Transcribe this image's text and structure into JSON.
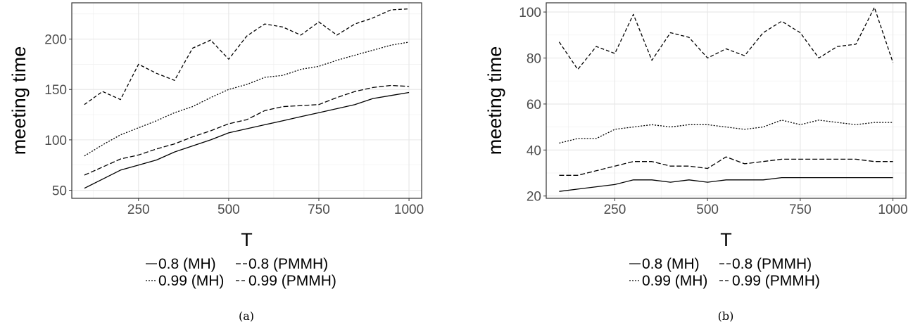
{
  "chart_data": [
    {
      "type": "line",
      "caption": "(a)",
      "xlabel": "T",
      "ylabel": "meeting time",
      "xlim": [
        65,
        1035
      ],
      "ylim": [
        42,
        236
      ],
      "xticks": [
        250,
        500,
        750,
        1000
      ],
      "yticks": [
        50,
        100,
        150,
        200
      ],
      "xtick_labels": [
        "250",
        "500",
        "750",
        "1000"
      ],
      "ytick_labels": [
        "50",
        "100",
        "150",
        "200"
      ],
      "grid": true,
      "legend_position": "bottom",
      "x": [
        100,
        150,
        200,
        250,
        300,
        350,
        400,
        450,
        500,
        550,
        600,
        650,
        700,
        750,
        800,
        850,
        900,
        950,
        1000
      ],
      "series": [
        {
          "name": "0.8 (MH)",
          "dash": "solid",
          "values": [
            52,
            61,
            70,
            75,
            80,
            88,
            94,
            100,
            107,
            111,
            115,
            119,
            123,
            127,
            131,
            135,
            141,
            144,
            147
          ]
        },
        {
          "name": "0.8 (PMMH)",
          "dash": "longdash",
          "values": [
            65,
            73,
            81,
            85,
            91,
            96,
            103,
            109,
            116,
            120,
            129,
            133,
            134,
            135,
            142,
            148,
            152,
            154,
            153
          ]
        },
        {
          "name": "0.99 (MH)",
          "dash": "dotted",
          "values": [
            84,
            95,
            105,
            112,
            119,
            127,
            133,
            142,
            150,
            155,
            162,
            164,
            170,
            173,
            179,
            184,
            189,
            194,
            197
          ]
        },
        {
          "name": "0.99 (PMMH)",
          "dash": "dashed",
          "values": [
            135,
            148,
            140,
            175,
            166,
            159,
            191,
            199,
            180,
            203,
            215,
            212,
            204,
            217,
            204,
            215,
            221,
            229,
            230
          ]
        }
      ]
    },
    {
      "type": "line",
      "caption": "(b)",
      "xlabel": "T",
      "ylabel": "meeting time",
      "xlim": [
        65,
        1035
      ],
      "ylim": [
        19,
        104
      ],
      "xticks": [
        250,
        500,
        750,
        1000
      ],
      "yticks": [
        20,
        40,
        60,
        80,
        100
      ],
      "xtick_labels": [
        "250",
        "500",
        "750",
        "1000"
      ],
      "ytick_labels": [
        "20",
        "40",
        "60",
        "80",
        "100"
      ],
      "grid": true,
      "legend_position": "bottom",
      "x": [
        100,
        150,
        200,
        250,
        300,
        350,
        400,
        450,
        500,
        550,
        600,
        650,
        700,
        750,
        800,
        850,
        900,
        950,
        1000
      ],
      "series": [
        {
          "name": "0.8 (MH)",
          "dash": "solid",
          "values": [
            22,
            23,
            24,
            25,
            27,
            27,
            26,
            27,
            26,
            27,
            27,
            27,
            28,
            28,
            28,
            28,
            28,
            28,
            28
          ]
        },
        {
          "name": "0.8 (PMMH)",
          "dash": "longdash",
          "values": [
            29,
            29,
            31,
            33,
            35,
            35,
            33,
            33,
            32,
            37,
            34,
            35,
            36,
            36,
            36,
            36,
            36,
            35,
            35
          ]
        },
        {
          "name": "0.99 (MH)",
          "dash": "dotted",
          "values": [
            43,
            45,
            45,
            49,
            50,
            51,
            50,
            51,
            51,
            50,
            49,
            50,
            53,
            51,
            53,
            52,
            51,
            52,
            52
          ]
        },
        {
          "name": "0.99 (PMMH)",
          "dash": "dashed",
          "values": [
            87,
            75,
            85,
            82,
            99,
            79,
            91,
            89,
            80,
            84,
            81,
            91,
            96,
            91,
            80,
            85,
            86,
            102,
            78
          ]
        }
      ]
    }
  ]
}
